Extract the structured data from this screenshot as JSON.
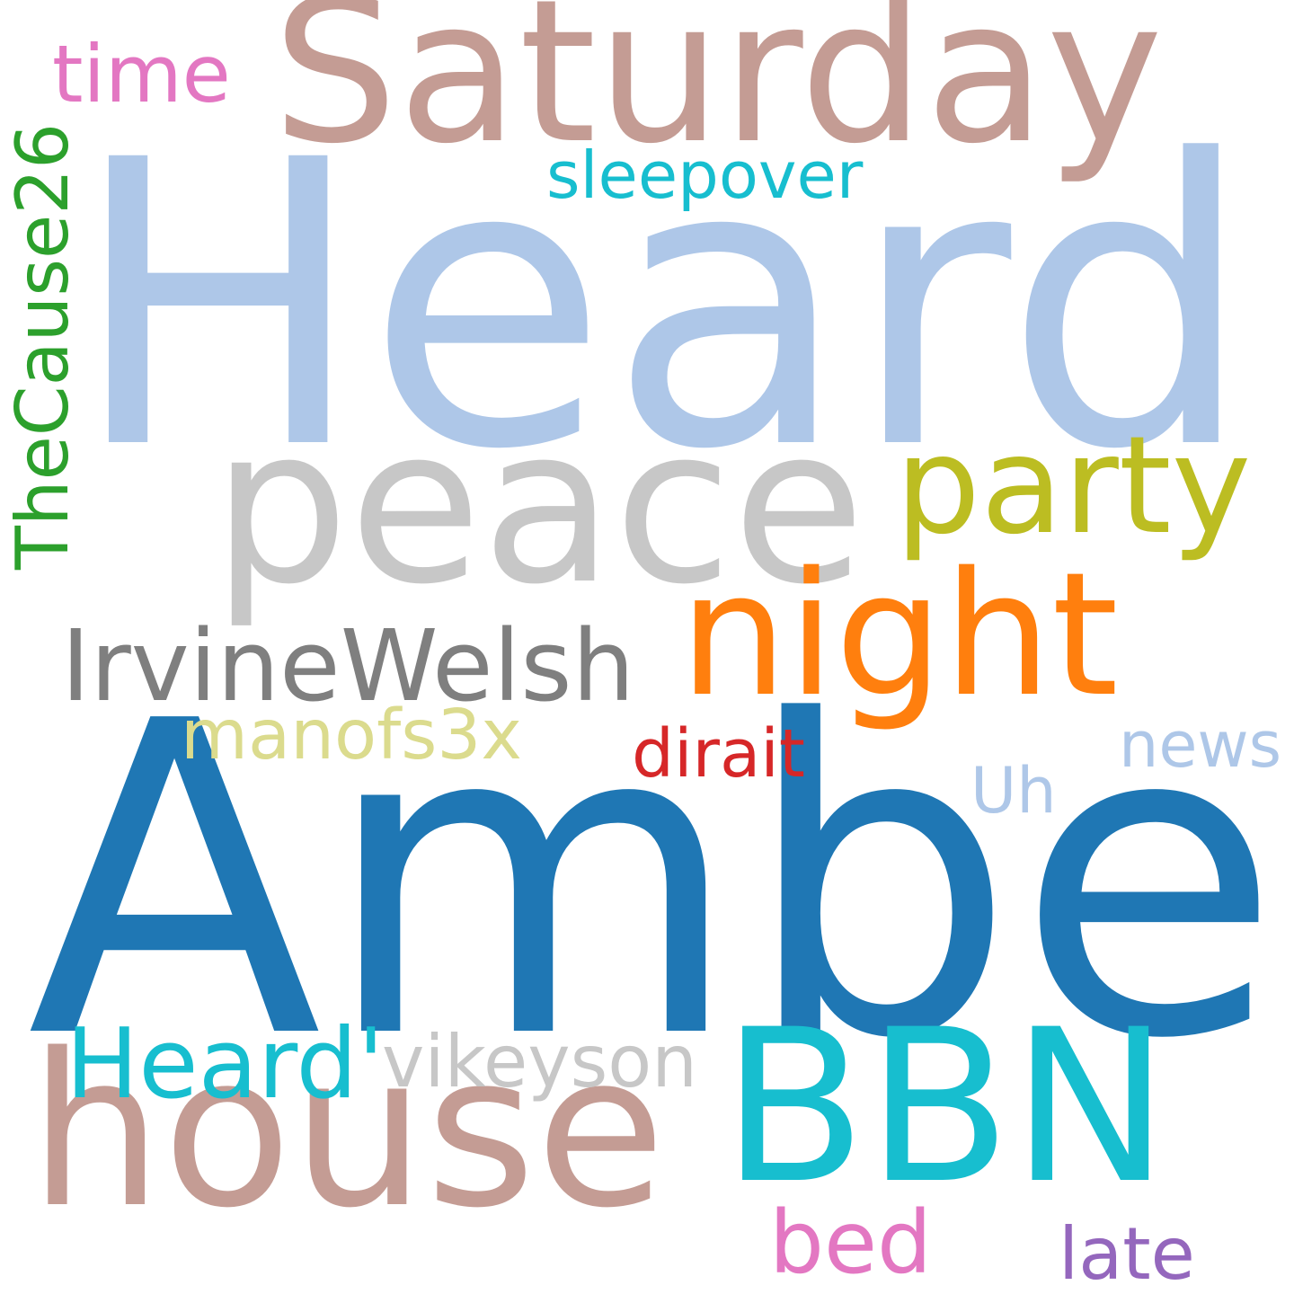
{
  "words": [
    {
      "id": "heard",
      "text": "Heard",
      "color": "#aec7e8"
    },
    {
      "id": "amber",
      "text": "Amber",
      "color": "#1f77b4"
    },
    {
      "id": "saturday",
      "text": "Saturday",
      "color": "#c49c94"
    },
    {
      "id": "peace",
      "text": "peace",
      "color": "#c7c7c7"
    },
    {
      "id": "party",
      "text": "party",
      "color": "#bcbd22"
    },
    {
      "id": "night",
      "text": "night",
      "color": "#ff7f0e"
    },
    {
      "id": "house",
      "text": "house",
      "color": "#c49c94"
    },
    {
      "id": "bbn",
      "text": "BBN",
      "color": "#17becf"
    },
    {
      "id": "irvinewelsh",
      "text": "IrvineWelsh",
      "color": "#7f7f7f"
    },
    {
      "id": "time",
      "text": "time",
      "color": "#e377c2"
    },
    {
      "id": "sleepover",
      "text": "sleepover",
      "color": "#17becf"
    },
    {
      "id": "thecause26",
      "text": "TheCause26",
      "color": "#2ca02c"
    },
    {
      "id": "manofs3x",
      "text": "manofs3x",
      "color": "#dbdb8d"
    },
    {
      "id": "dirait",
      "text": "dirait",
      "color": "#d62728"
    },
    {
      "id": "news",
      "text": "news",
      "color": "#aec7e8"
    },
    {
      "id": "uh",
      "text": "Uh",
      "color": "#aec7e8"
    },
    {
      "id": "heard-apos",
      "text": "Heard'",
      "color": "#17becf"
    },
    {
      "id": "vikeyson",
      "text": "vikeyson",
      "color": "#c7c7c7"
    },
    {
      "id": "bed",
      "text": "bed",
      "color": "#e377c2"
    },
    {
      "id": "late",
      "text": "late",
      "color": "#9467bd"
    }
  ]
}
